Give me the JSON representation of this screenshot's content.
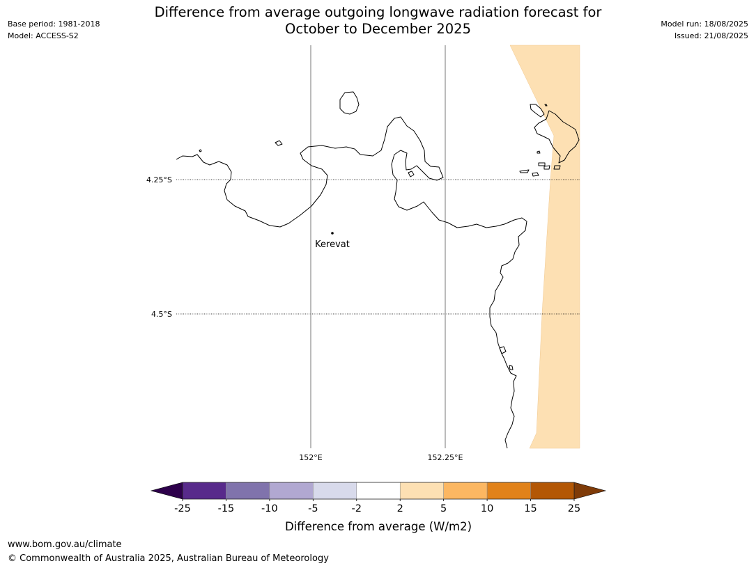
{
  "header": {
    "title_line1": "Difference from average outgoing longwave radiation forecast for",
    "title_line2": "October to December 2025",
    "base_period": "Base period: 1981-2018",
    "model": "Model: ACCESS-S2",
    "model_run": "Model run: 18/08/2025",
    "issued": "Issued: 21/08/2025"
  },
  "map": {
    "lat_labels": [
      "4.25°S",
      "4.5°S"
    ],
    "lon_labels": [
      "152°E",
      "152.25°E"
    ],
    "place": "Kerevat",
    "anomaly_color": "#fde0b3"
  },
  "colorbar": {
    "tick_labels": [
      "-25",
      "-15",
      "-10",
      "-5",
      "-2",
      "2",
      "5",
      "10",
      "15",
      "25"
    ],
    "colors": [
      "#582a8b",
      "#8073ac",
      "#b1a8d1",
      "#d8daeb",
      "#ffffff",
      "#fde0b3",
      "#fcb762",
      "#e1821a",
      "#b35705"
    ],
    "under_color": "#2d004b",
    "over_color": "#7f3b08",
    "label": "Difference from average (W/m2)"
  },
  "footer": {
    "url": "www.bom.gov.au/climate",
    "copyright": "© Commonwealth of Australia 2025, Australian Bureau of Meteorology"
  }
}
